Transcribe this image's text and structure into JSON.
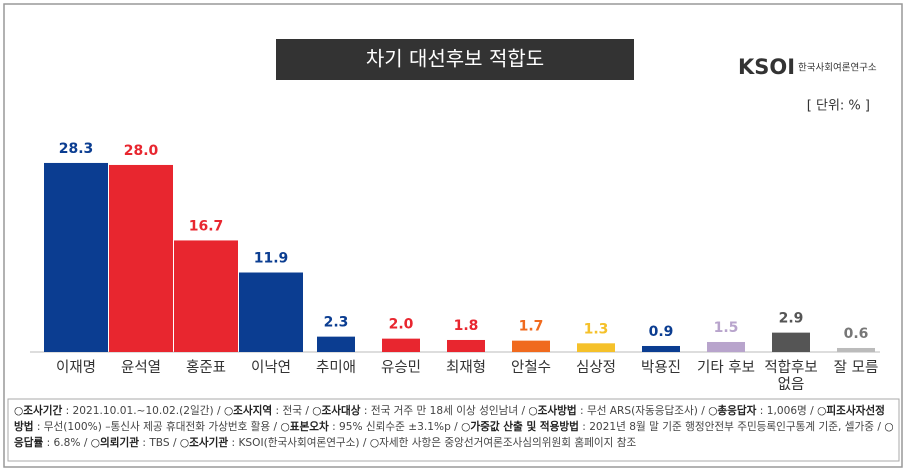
{
  "chart_data": {
    "type": "bar",
    "title": "차기 대선후보 적합도",
    "logo": "KSOI",
    "logo_caption": "한국사회여론연구소",
    "unit": "[ 단위: % ]",
    "categories": [
      "이재명",
      "윤석열",
      "홍준표",
      "이낙연",
      "추미애",
      "유승민",
      "최재형",
      "안철수",
      "심상정",
      "박용진",
      "기타 후보",
      "적합후보\n없음",
      "잘 모름"
    ],
    "values": [
      28.3,
      28.0,
      16.7,
      11.9,
      2.3,
      2.0,
      1.8,
      1.7,
      1.3,
      0.9,
      1.5,
      2.9,
      0.6
    ],
    "value_labels": [
      "28.3",
      "28.0",
      "16.7",
      "11.9",
      "2.3",
      "2.0",
      "1.8",
      "1.7",
      "1.3",
      "0.9",
      "1.5",
      "2.9",
      "0.6"
    ],
    "colors": [
      "#0b3d91",
      "#e8262f",
      "#e8262f",
      "#0b3d91",
      "#0b3d91",
      "#e8262f",
      "#e8262f",
      "#f06a1e",
      "#f5c12a",
      "#0b3d91",
      "#b8a4cc",
      "#555555",
      "#bbbbbb"
    ],
    "notes": [
      {
        "label": "○조사기간",
        "text": " : 2021.10.01.~10.02.(2일간) / "
      },
      {
        "label": "○조사지역",
        "text": " : 전국 / "
      },
      {
        "label": "○조사대상",
        "text": " : 전국 거주 만 18세 이상 성인남녀 / "
      },
      {
        "label": "○조사방법",
        "text": " : 무선 ARS(자동응답조사) / "
      },
      {
        "label": "○총응답자",
        "text": " : 1,006명 / "
      },
      {
        "label": "○피조사자선정방법",
        "text": " : 무선(100%) –통신사 제공 휴대전화 가상번호 활용 / "
      },
      {
        "label": "○표본오차",
        "text": " : 95% 신뢰수준 ±3.1%p / "
      },
      {
        "label": "○가중값 산출 및 적용방법",
        "text": " : 2021년 8월 말 기준 행정안전부 주민등록인구통계 기준, 셀가중 / "
      },
      {
        "label": "○응답률",
        "text": " : 6.8% / "
      },
      {
        "label": "○의뢰기관",
        "text": " : TBS / "
      },
      {
        "label": "○조사기관",
        "text": " : KSOI(한국사회여론연구소) / "
      },
      {
        "label": "○",
        "text": "자세한 사항은 중앙선거여론조사심의위원회 홈페이지 참조"
      }
    ]
  }
}
